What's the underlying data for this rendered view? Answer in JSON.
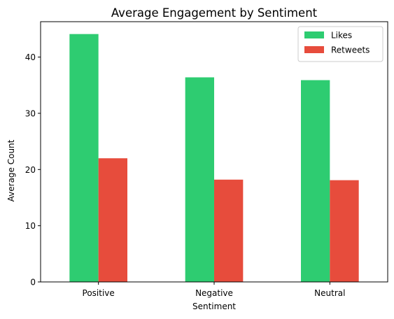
{
  "chart_data": {
    "type": "bar",
    "title": "Average Engagement by Sentiment",
    "xlabel": "Sentiment",
    "ylabel": "Average Count",
    "categories": [
      "Positive",
      "Negative",
      "Neutral"
    ],
    "series": [
      {
        "name": "Likes",
        "color": "#2ecc71",
        "values": [
          44.1,
          36.4,
          35.9
        ]
      },
      {
        "name": "Retweets",
        "color": "#e74c3c",
        "values": [
          22.0,
          18.2,
          18.1
        ]
      }
    ],
    "ylim": [
      0,
      46.3
    ],
    "yticks": [
      0,
      10,
      20,
      30,
      40
    ],
    "grid": false,
    "legend_position": "top-right"
  }
}
